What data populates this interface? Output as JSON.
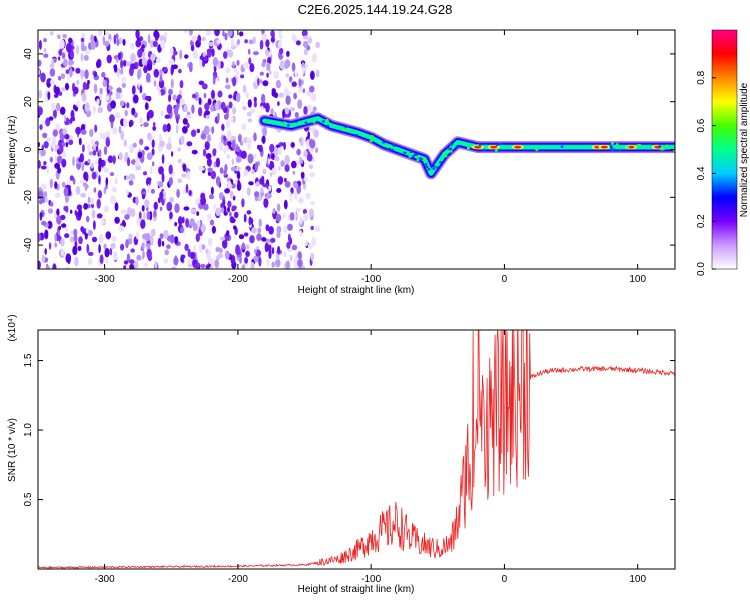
{
  "title": "C2E6.2025.144.19.24.G28",
  "chart_data": [
    {
      "type": "heatmap",
      "xlabel": "Height of straight line (km)",
      "ylabel": "Frequency (Hz)",
      "xlim": [
        -350,
        128
      ],
      "ylim": [
        -50,
        50
      ],
      "x_ticks": [
        -300,
        -200,
        -100,
        0,
        100
      ],
      "y_ticks": [
        -40,
        -20,
        0,
        20,
        40
      ],
      "colorbar": {
        "label": "Normalized spectral amplitude",
        "range": [
          0,
          1
        ],
        "ticks": [
          "0.0",
          "0.2",
          "0.4",
          "0.6",
          "0.8"
        ],
        "colors": [
          "#ffffff",
          "#cc99ff",
          "#7700ff",
          "#0000ff",
          "#00ccff",
          "#00ff88",
          "#44ff00",
          "#ffff00",
          "#ff8800",
          "#ff0000",
          "#ff0088"
        ]
      },
      "noise_region": {
        "x_range": [
          -350,
          -140
        ],
        "y_range": [
          -50,
          50
        ]
      },
      "ridge": [
        {
          "x": -180,
          "y": 12
        },
        {
          "x": -160,
          "y": 10
        },
        {
          "x": -140,
          "y": 13
        },
        {
          "x": -130,
          "y": 10
        },
        {
          "x": -110,
          "y": 7
        },
        {
          "x": -100,
          "y": 5
        },
        {
          "x": -90,
          "y": 2
        },
        {
          "x": -80,
          "y": 0
        },
        {
          "x": -70,
          "y": -2
        },
        {
          "x": -60,
          "y": -4
        },
        {
          "x": -55,
          "y": -10
        },
        {
          "x": -45,
          "y": -2
        },
        {
          "x": -35,
          "y": 3
        },
        {
          "x": -20,
          "y": 1
        },
        {
          "x": 0,
          "y": 1
        },
        {
          "x": 40,
          "y": 1
        },
        {
          "x": 80,
          "y": 1
        },
        {
          "x": 100,
          "y": 1
        },
        {
          "x": 128,
          "y": 1
        }
      ]
    },
    {
      "type": "line",
      "xlabel": "Height of straight line (km)",
      "ylabel": "SNR (10 * v/v)",
      "y_multiplier": "(x10⁴)",
      "xlim": [
        -350,
        128
      ],
      "ylim": [
        0,
        1.72
      ],
      "x_ticks": [
        -300,
        -200,
        -100,
        0,
        100
      ],
      "y_ticks": [
        "0.5",
        "1.0",
        "1.5"
      ],
      "color": "#ee2222",
      "series": [
        {
          "x": [
            -350,
            -200,
            -150,
            -125,
            -110,
            -100,
            -90,
            -80,
            -70,
            -60,
            -50,
            -40,
            -35,
            -30,
            -25,
            -20,
            -15,
            -10,
            -5,
            0,
            10,
            20,
            30,
            40,
            60,
            80,
            100,
            110,
            128
          ],
          "y": [
            0.01,
            0.02,
            0.03,
            0.07,
            0.14,
            0.22,
            0.28,
            0.33,
            0.22,
            0.17,
            0.14,
            0.18,
            0.35,
            0.6,
            0.9,
            0.92,
            1.0,
            1.1,
            1.12,
            1.15,
            1.3,
            1.38,
            1.42,
            1.43,
            1.44,
            1.44,
            1.43,
            1.42,
            1.41
          ]
        }
      ]
    }
  ]
}
